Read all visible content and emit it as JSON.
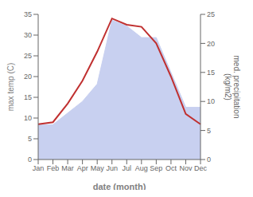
{
  "chart_data": {
    "type": "line",
    "categories": [
      "Jan",
      "Feb",
      "Mar",
      "Apr",
      "May",
      "Jun",
      "Jul",
      "Aug",
      "Sep",
      "Oct",
      "Nov",
      "Dec"
    ],
    "series": [
      {
        "type": "area",
        "axis": "y2",
        "color": "#c8d0f0",
        "values": [
          6.0,
          6.0,
          8.0,
          10.0,
          13.0,
          24.0,
          23.0,
          21.0,
          21.0,
          15.0,
          9.0,
          9.0
        ]
      },
      {
        "type": "line",
        "color": "#c03030",
        "values": [
          8.5,
          9.0,
          13.5,
          19.0,
          26.0,
          34.0,
          32.5,
          32.0,
          28.0,
          20.0,
          11.0,
          8.5
        ]
      }
    ],
    "xlabel": "date (month)",
    "ylabel": "max temp (C)",
    "y2label": "med. precipitation\n(kg/m2)",
    "ylim": [
      0,
      35
    ],
    "yticks": [
      0,
      5,
      10,
      15,
      20,
      25,
      30,
      35
    ],
    "y2lim": [
      0,
      25
    ],
    "y2ticks": [
      0,
      5,
      10,
      15,
      20,
      25
    ],
    "grid": false
  }
}
